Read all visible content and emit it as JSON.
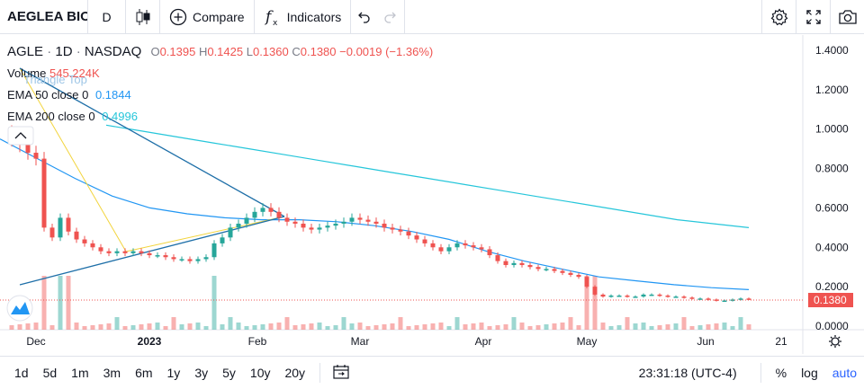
{
  "toolbar": {
    "symbol": "AEGLEA BIO",
    "interval": "D",
    "compare": "Compare",
    "indicators": "Indicators"
  },
  "legend": {
    "ticker": "AGLE",
    "interval": "1D",
    "exchange": "NASDAQ",
    "o_label": "O",
    "o": "0.1395",
    "h_label": "H",
    "h": "0.1425",
    "l_label": "L",
    "l": "0.1360",
    "c_label": "C",
    "c": "0.1380",
    "change": "−0.0019 (−1.36%)",
    "volume_label": "Volume",
    "volume": "545.224K",
    "ema50_label": "EMA 50 close 0",
    "ema50": "0.1844",
    "ema200_label": "EMA 200 close 0",
    "ema200": "0.4996",
    "pattern": "Triangle Top"
  },
  "price_axis": [
    "1.4000",
    "1.2000",
    "1.0000",
    "0.8000",
    "0.6000",
    "0.4000",
    "0.2000",
    "0.0000"
  ],
  "last_price": "0.1380",
  "time_axis": [
    "Dec",
    "2023",
    "Feb",
    "Mar",
    "Apr",
    "May",
    "Jun",
    "21"
  ],
  "ranges": [
    "1d",
    "5d",
    "1m",
    "3m",
    "6m",
    "1y",
    "3y",
    "5y",
    "10y",
    "20y"
  ],
  "clock": "23:31:18 (UTC-4)",
  "bottom_right": {
    "percent": "%",
    "log": "log",
    "auto": "auto"
  },
  "colors": {
    "up": "#26a69a",
    "down": "#ef5350",
    "ema50": "#2196f3",
    "ema200": "#26c6da",
    "pattern": "#f2d43d"
  },
  "chart_data": {
    "type": "candlestick",
    "title": "",
    "ylim": [
      0,
      1.45
    ],
    "x_labels": [
      "Dec",
      "2023",
      "Feb",
      "Mar",
      "Apr",
      "May",
      "Jun",
      "21"
    ],
    "closes": [
      0.98,
      0.95,
      0.92,
      0.88,
      0.85,
      0.5,
      0.45,
      0.55,
      0.48,
      0.44,
      0.42,
      0.4,
      0.38,
      0.37,
      0.38,
      0.37,
      0.38,
      0.37,
      0.36,
      0.36,
      0.35,
      0.34,
      0.34,
      0.33,
      0.34,
      0.35,
      0.42,
      0.45,
      0.5,
      0.52,
      0.55,
      0.58,
      0.6,
      0.58,
      0.55,
      0.53,
      0.52,
      0.5,
      0.49,
      0.5,
      0.51,
      0.52,
      0.53,
      0.55,
      0.54,
      0.53,
      0.52,
      0.5,
      0.49,
      0.48,
      0.46,
      0.44,
      0.42,
      0.4,
      0.38,
      0.4,
      0.42,
      0.41,
      0.4,
      0.39,
      0.36,
      0.33,
      0.31,
      0.32,
      0.31,
      0.3,
      0.29,
      0.29,
      0.28,
      0.27,
      0.26,
      0.25,
      0.2,
      0.16,
      0.15,
      0.155,
      0.155,
      0.15,
      0.15,
      0.16,
      0.16,
      0.155,
      0.15,
      0.15,
      0.145,
      0.14,
      0.14,
      0.135,
      0.13,
      0.13,
      0.135,
      0.14,
      0.138
    ],
    "ema50": [
      0.95,
      0.85,
      0.75,
      0.66,
      0.6,
      0.57,
      0.55,
      0.54,
      0.54,
      0.53,
      0.51,
      0.48,
      0.44,
      0.38,
      0.33,
      0.29,
      0.25,
      0.23,
      0.21,
      0.195,
      0.185
    ],
    "ema200": [
      1.02,
      0.99,
      0.96,
      0.93,
      0.9,
      0.87,
      0.84,
      0.81,
      0.78,
      0.75,
      0.72,
      0.69,
      0.66,
      0.63,
      0.6,
      0.57,
      0.54,
      0.52,
      0.5
    ],
    "volume_label": "Volume"
  }
}
